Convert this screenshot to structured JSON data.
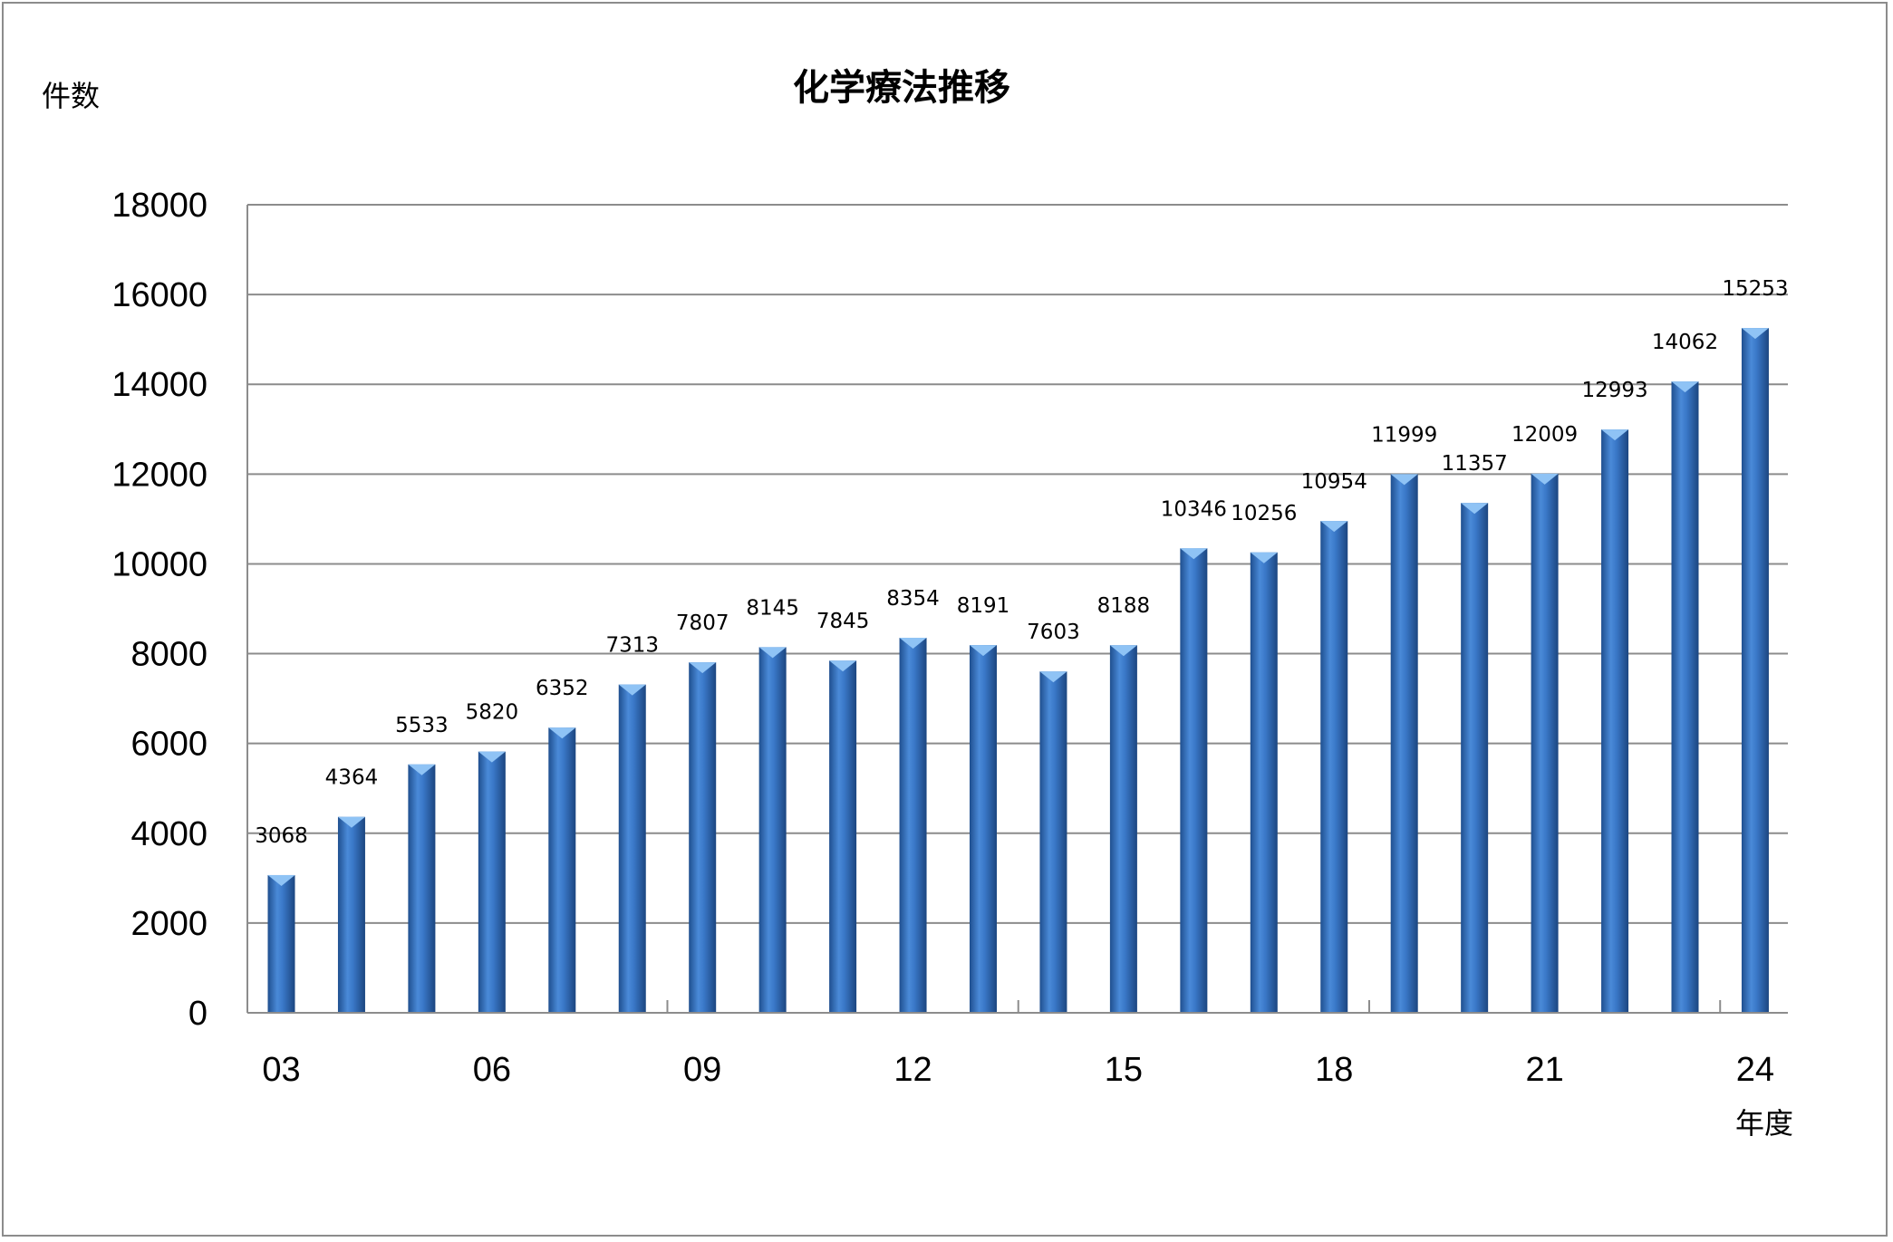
{
  "chart_data": {
    "type": "bar",
    "title": "化学療法推移",
    "ylabel": "件数",
    "xlabel": "年度",
    "ylim": [
      0,
      18000
    ],
    "yticks": [
      0,
      2000,
      4000,
      6000,
      8000,
      10000,
      12000,
      14000,
      16000,
      18000
    ],
    "xtick_labels": [
      "03",
      "06",
      "09",
      "12",
      "15",
      "18",
      "21",
      "24"
    ],
    "grid": true,
    "legend": "none",
    "colors": {
      "bar": "#3a78c8",
      "bar_top": "#8fc3f5",
      "grid": "#8c8c8c"
    },
    "values": [
      3068,
      4364,
      5533,
      5820,
      6352,
      7313,
      7807,
      8145,
      7845,
      8354,
      8191,
      7603,
      8188,
      10346,
      10256,
      10954,
      11999,
      11357,
      12009,
      12993,
      14062,
      15253
    ],
    "data_labels": [
      "3068",
      "4364",
      "5533",
      "5820",
      "6352",
      "7313",
      "7807",
      "8145",
      "7845",
      "8354",
      "8191",
      "7603",
      "8188",
      "10346",
      "10256",
      "10954",
      "11999",
      "11357",
      "12009",
      "12993",
      "14062",
      "15253"
    ]
  }
}
